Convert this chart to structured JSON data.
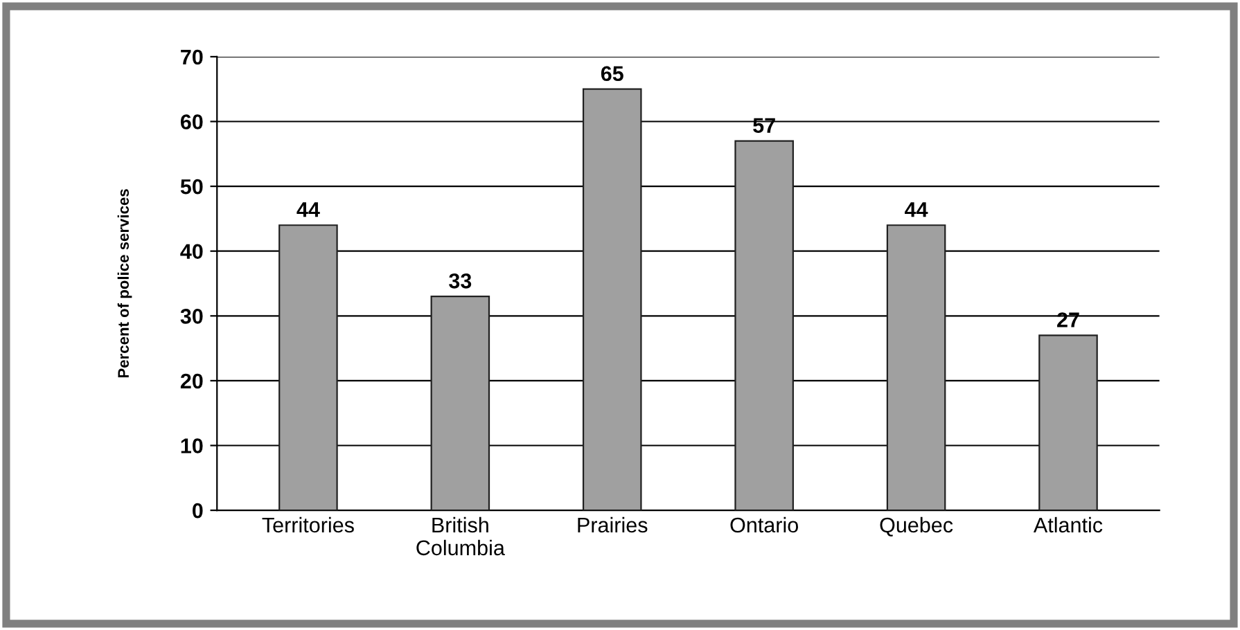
{
  "chart_data": {
    "type": "bar",
    "ylabel": "Percent of police services",
    "categories": [
      "Territories",
      "British\nColumbia",
      "Prairies",
      "Ontario",
      "Quebec",
      "Atlantic"
    ],
    "values": [
      44,
      33,
      65,
      57,
      44,
      27
    ],
    "color": "#a0a0a0",
    "ylim": [
      0,
      70
    ],
    "yticks": [
      0,
      10,
      20,
      30,
      40,
      50,
      60,
      70
    ],
    "grid": "y",
    "data_labels": true
  }
}
